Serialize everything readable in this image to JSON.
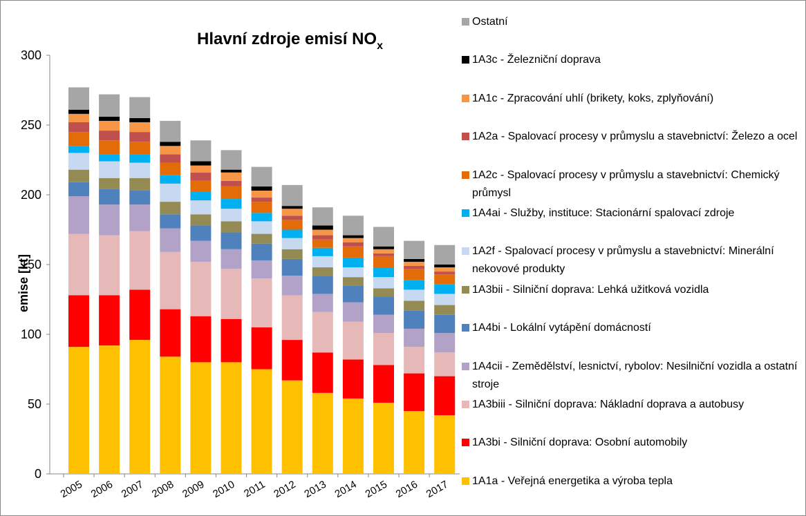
{
  "chart_data": {
    "type": "stacked_bar",
    "title": "Hlavní zdroje emisí NO",
    "title_subscript": "x",
    "y_label": "emise [kt]",
    "categories": [
      "2005",
      "2006",
      "2007",
      "2008",
      "2009",
      "2010",
      "2011",
      "2012",
      "2013",
      "2014",
      "2015",
      "2016",
      "2017"
    ],
    "ylim": [
      0,
      300
    ],
    "yticks": [
      0,
      50,
      100,
      150,
      200,
      250,
      300
    ],
    "series": [
      {
        "name": "1A1a - Veřejná energetika a výroba tepla",
        "color": "#FFC000",
        "values": [
          91,
          92,
          96,
          84,
          80,
          80,
          75,
          67,
          58,
          54,
          51,
          45,
          42
        ]
      },
      {
        "name": "1A3bi - Silniční doprava: Osobní automobily",
        "color": "#FF0000",
        "values": [
          37,
          36,
          36,
          34,
          33,
          31,
          30,
          29,
          29,
          28,
          27,
          27,
          28
        ]
      },
      {
        "name": "1A3biii - Silniční doprava: Nákladní doprava a autobusy",
        "color": "#E6B9B8",
        "values": [
          44,
          43,
          42,
          41,
          39,
          36,
          35,
          32,
          29,
          27,
          23,
          19,
          17
        ]
      },
      {
        "name": "1A4cii - Zemědělství, lesnictví, rybolov: Nesilniční vozidla a ostatní stroje",
        "color": "#B3A2C7",
        "values": [
          27,
          22,
          19,
          17,
          15,
          14,
          13,
          14,
          13,
          14,
          13,
          13,
          14
        ]
      },
      {
        "name": "1A4bi - Lokální vytápění domácností",
        "color": "#4F81BD",
        "values": [
          10,
          11,
          10,
          10,
          11,
          12,
          12,
          12,
          13,
          12,
          13,
          13,
          13
        ]
      },
      {
        "name": "1A3bii - Silniční doprava: Lehká užitková vozidla",
        "color": "#948A54",
        "values": [
          9,
          8,
          9,
          9,
          8,
          8,
          7,
          7,
          6,
          6,
          6,
          7,
          7
        ]
      },
      {
        "name": "1A2f - Spalovací procesy v průmyslu a stavebnictví: Minerální nekovové produkty",
        "color": "#C6D9F1",
        "values": [
          12,
          12,
          11,
          13,
          10,
          9,
          9,
          8,
          8,
          7,
          8,
          8,
          8
        ]
      },
      {
        "name": "1A4ai - Služby, instituce: Stacionární spalovací zdroje",
        "color": "#00B0F0",
        "values": [
          5,
          5,
          6,
          6,
          6,
          7,
          6,
          6,
          6,
          7,
          7,
          7,
          7
        ]
      },
      {
        "name": "1A2c - Spalovací procesy v průmyslu a stavebnictví: Chemický průmysl",
        "color": "#E36C09",
        "values": [
          10,
          10,
          9,
          9,
          8,
          9,
          8,
          7,
          6,
          8,
          8,
          8,
          7
        ]
      },
      {
        "name": "1A2a - Spalovací procesy v průmyslu a stavebnictví: Železo a ocel",
        "color": "#C0504D",
        "values": [
          7,
          7,
          7,
          6,
          6,
          4,
          3,
          3,
          3,
          3,
          2,
          2,
          2
        ]
      },
      {
        "name": "1A1c - Zpracování uhlí (brikety, koks, zplyňování)",
        "color": "#F79646",
        "values": [
          6,
          7,
          7,
          6,
          5,
          6,
          5,
          5,
          4,
          3,
          3,
          3,
          3
        ]
      },
      {
        "name": "1A3c - Železniční doprava",
        "color": "#000000",
        "values": [
          3,
          3,
          3,
          3,
          3,
          2,
          3,
          2,
          3,
          2,
          2,
          2,
          2
        ]
      },
      {
        "name": "Ostatní",
        "color": "#A6A6A6",
        "values": [
          16,
          16,
          15,
          15,
          15,
          14,
          14,
          15,
          13,
          14,
          14,
          13,
          14
        ]
      }
    ]
  }
}
